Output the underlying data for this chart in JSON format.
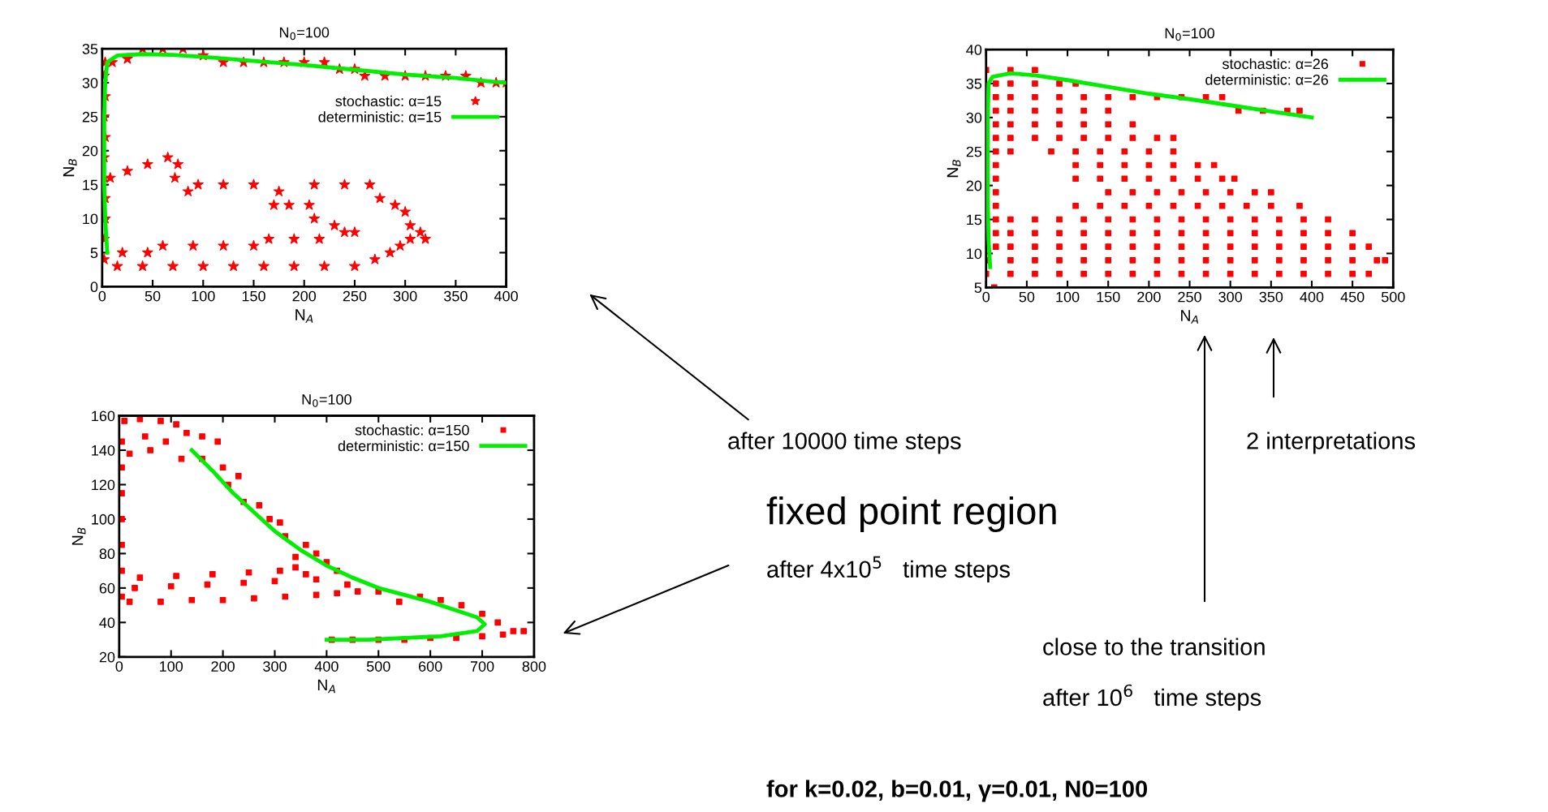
{
  "chart_data": [
    {
      "type": "scatter",
      "title": "N$_{0}$=100",
      "xlabel": "N$_{A}$",
      "ylabel": "N$_{B}$",
      "xlim": [
        0,
        400
      ],
      "ylim": [
        0,
        35
      ],
      "xticks": [
        0,
        50,
        100,
        150,
        200,
        250,
        300,
        350,
        400
      ],
      "yticks": [
        0,
        5,
        10,
        15,
        20,
        25,
        30,
        35
      ],
      "legend": "right",
      "annotations": [
        "after 10000 time steps"
      ],
      "series": [
        {
          "name": "stochastic: α=15",
          "marker": "star",
          "color": "#ff0000",
          "x": [
            2,
            2,
            3,
            3,
            2,
            2,
            3,
            2,
            3,
            2,
            3,
            10,
            25,
            40,
            60,
            80,
            100,
            120,
            140,
            160,
            180,
            200,
            220,
            235,
            250,
            260,
            280,
            300,
            320,
            340,
            360,
            375,
            390,
            400,
            15,
            40,
            70,
            100,
            130,
            160,
            190,
            220,
            250,
            270,
            285,
            295,
            305,
            315,
            320,
            305,
            300,
            290,
            275,
            265,
            240,
            210,
            175,
            150,
            120,
            95,
            85,
            72,
            75,
            65,
            45,
            25,
            8,
            20,
            45,
            60,
            90,
            120,
            150,
            165,
            190,
            215,
            240,
            250,
            230,
            210,
            205,
            185,
            170
          ],
          "values": [
            4,
            7,
            10,
            13,
            16,
            19,
            22,
            25,
            28,
            31,
            33,
            33,
            33.5,
            35,
            35,
            35,
            34,
            33,
            33,
            33,
            33,
            33,
            33,
            32,
            32,
            31,
            31,
            31,
            31,
            31,
            31,
            30,
            30,
            30,
            3,
            3,
            3,
            3,
            3,
            3,
            3,
            3,
            3,
            4,
            5,
            6,
            7,
            8,
            7,
            9,
            11,
            12,
            13,
            15,
            15,
            15,
            14,
            15,
            15,
            15,
            14,
            16,
            18,
            19,
            18,
            17,
            16,
            5,
            5,
            6,
            6,
            6,
            6,
            7,
            7,
            7,
            8,
            8,
            9,
            10,
            12,
            12,
            12
          ]
        },
        {
          "name": "deterministic: α=15",
          "type": "line",
          "marker": "none",
          "color": "#00ee00",
          "x": [
            5,
            3,
            2,
            2,
            2,
            3,
            5,
            15,
            40,
            70,
            100,
            150,
            200,
            250,
            300,
            350,
            390,
            400
          ],
          "values": [
            5,
            10,
            15,
            20,
            25,
            30,
            33,
            34,
            34.2,
            34.1,
            33.8,
            33.2,
            32.6,
            31.9,
            31.2,
            30.7,
            30.1,
            30
          ]
        }
      ]
    },
    {
      "type": "scatter",
      "title": "N$_{0}$=100",
      "xlabel": "N$_{A}$",
      "ylabel": "N$_{B}$",
      "xlim": [
        0,
        500
      ],
      "ylim": [
        5,
        40
      ],
      "xticks": [
        0,
        50,
        100,
        150,
        200,
        250,
        300,
        350,
        400,
        450,
        500
      ],
      "yticks": [
        5,
        10,
        15,
        20,
        25,
        30,
        35,
        40
      ],
      "legend": "top right",
      "annotations": [
        "2 interpretations",
        "close to the transition",
        "after 10$^{6}$   time steps"
      ],
      "series": [
        {
          "name": "stochastic: α=26",
          "marker": "square",
          "color": "#ff0000",
          "x": [
            0,
            30,
            60,
            12,
            30,
            60,
            90,
            110,
            12,
            30,
            60,
            90,
            120,
            150,
            180,
            210,
            240,
            270,
            290,
            12,
            30,
            60,
            90,
            120,
            150,
            310,
            340,
            370,
            385,
            12,
            30,
            60,
            90,
            120,
            150,
            180,
            12,
            30,
            60,
            90,
            120,
            150,
            180,
            210,
            230,
            12,
            30,
            80,
            110,
            140,
            170,
            200,
            230,
            12,
            110,
            140,
            170,
            200,
            230,
            260,
            280,
            12,
            110,
            140,
            170,
            200,
            230,
            260,
            290,
            305,
            12,
            150,
            180,
            210,
            240,
            270,
            300,
            330,
            350,
            12,
            110,
            140,
            170,
            200,
            230,
            260,
            290,
            320,
            350,
            385,
            12,
            30,
            60,
            90,
            120,
            150,
            180,
            210,
            240,
            270,
            300,
            330,
            360,
            390,
            420,
            12,
            30,
            60,
            90,
            120,
            150,
            180,
            210,
            240,
            270,
            300,
            330,
            360,
            390,
            420,
            450,
            12,
            30,
            60,
            90,
            120,
            150,
            180,
            210,
            240,
            270,
            300,
            330,
            360,
            390,
            420,
            450,
            470,
            0,
            30,
            60,
            90,
            120,
            150,
            180,
            210,
            240,
            270,
            300,
            330,
            360,
            390,
            420,
            450,
            480,
            490,
            0,
            30,
            60,
            90,
            120,
            150,
            180,
            210,
            240,
            270,
            300,
            330,
            360,
            390,
            420,
            450,
            470,
            10
          ],
          "values": [
            37,
            37,
            37,
            35,
            35,
            35,
            35,
            35,
            33,
            33,
            33,
            33,
            33,
            33,
            33,
            33,
            33,
            33,
            33,
            31,
            31,
            31,
            31,
            31,
            31,
            31,
            31,
            31,
            31,
            29,
            29,
            29,
            29,
            29,
            29,
            29,
            27,
            27,
            27,
            27,
            27,
            27,
            27,
            27,
            27,
            25,
            25,
            25,
            25,
            25,
            25,
            25,
            25,
            23,
            23,
            23,
            23,
            23,
            23,
            23,
            23,
            21,
            21,
            21,
            21,
            21,
            21,
            21,
            21,
            21,
            19,
            19,
            19,
            19,
            19,
            19,
            19,
            19,
            19,
            17,
            17,
            17,
            17,
            17,
            17,
            17,
            17,
            17,
            17,
            17,
            15,
            15,
            15,
            15,
            15,
            15,
            15,
            15,
            15,
            15,
            15,
            15,
            15,
            15,
            15,
            13,
            13,
            13,
            13,
            13,
            13,
            13,
            13,
            13,
            13,
            13,
            13,
            13,
            13,
            13,
            13,
            11,
            11,
            11,
            11,
            11,
            11,
            11,
            11,
            11,
            11,
            11,
            11,
            11,
            11,
            11,
            11,
            11,
            9,
            9,
            9,
            9,
            9,
            9,
            9,
            9,
            9,
            9,
            9,
            9,
            9,
            9,
            9,
            9,
            9,
            9,
            7,
            7,
            7,
            7,
            7,
            7,
            7,
            7,
            7,
            7,
            7,
            7,
            7,
            7,
            7,
            7,
            7,
            5
          ]
        },
        {
          "name": "deterministic: α=26",
          "type": "line",
          "marker": "none",
          "color": "#00ee00",
          "x": [
            5,
            3,
            2,
            2,
            2,
            3,
            8,
            30,
            60,
            100,
            150,
            200,
            250,
            300,
            350,
            400
          ],
          "values": [
            8,
            12,
            18,
            24,
            30,
            35,
            36,
            36.5,
            36.2,
            35.5,
            34.5,
            33.5,
            32.7,
            31.8,
            30.9,
            30
          ]
        }
      ]
    },
    {
      "type": "scatter",
      "title": "N$_{0}$=100",
      "xlabel": "N$_{A}$",
      "ylabel": "N$_{B}$",
      "xlim": [
        0,
        800
      ],
      "ylim": [
        20,
        160
      ],
      "xticks": [
        0,
        100,
        200,
        300,
        400,
        500,
        600,
        700,
        800
      ],
      "yticks": [
        20,
        40,
        60,
        80,
        100,
        120,
        140,
        160
      ],
      "legend": "top right",
      "annotations": [
        "fixed point region",
        "after 4x10$^{5}$   time steps",
        "for k=0.02, b=0.01, γ=0.01, N0=100"
      ],
      "series": [
        {
          "name": "stochastic: α=150",
          "marker": "square",
          "color": "#ff0000",
          "x": [
            5,
            5,
            5,
            5,
            5,
            5,
            5,
            10,
            40,
            80,
            110,
            50,
            20,
            60,
            90,
            130,
            160,
            190,
            120,
            160,
            200,
            210,
            230,
            240,
            270,
            290,
            310,
            320,
            360,
            340,
            380,
            400,
            420,
            380,
            440,
            460,
            500,
            540,
            580,
            620,
            660,
            700,
            730,
            760,
            780,
            740,
            700,
            650,
            600,
            550,
            500,
            450,
            410,
            20,
            80,
            140,
            200,
            260,
            320,
            380,
            420,
            30,
            100,
            170,
            240,
            300,
            360,
            40,
            110,
            180,
            250,
            310,
            340
          ],
          "values": [
            55,
            70,
            85,
            100,
            115,
            130,
            145,
            157,
            158,
            157,
            155,
            148,
            138,
            140,
            145,
            150,
            148,
            145,
            135,
            135,
            130,
            120,
            125,
            110,
            108,
            100,
            98,
            90,
            85,
            78,
            80,
            75,
            70,
            65,
            62,
            58,
            58,
            52,
            55,
            53,
            50,
            45,
            40,
            35,
            35,
            33,
            32,
            31,
            31,
            30,
            30,
            30,
            30,
            52,
            52,
            53,
            53,
            54,
            55,
            56,
            57,
            60,
            61,
            62,
            63,
            64,
            68,
            66,
            67,
            68,
            69,
            70,
            72
          ]
        },
        {
          "name": "deterministic: α=150",
          "type": "line",
          "marker": "none",
          "color": "#00ee00",
          "x": [
            140,
            180,
            220,
            260,
            300,
            350,
            400,
            450,
            500,
            550,
            600,
            650,
            690,
            705,
            690,
            620,
            550,
            480,
            400
          ],
          "values": [
            140,
            128,
            115,
            104,
            93,
            82,
            73,
            66,
            60,
            56,
            52,
            47,
            43,
            39,
            35,
            32,
            31,
            30,
            30
          ]
        }
      ]
    }
  ]
}
